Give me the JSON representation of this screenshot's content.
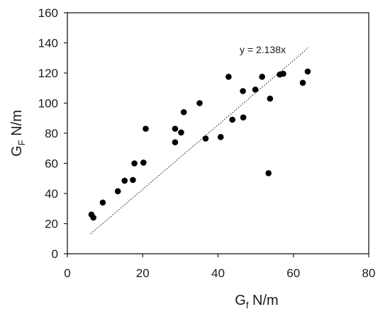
{
  "chart_data": {
    "type": "scatter",
    "title": "",
    "xlabel_main": "G",
    "xlabel_sub": "f",
    "xlabel_unit": " N/m",
    "ylabel_main": "G",
    "ylabel_sub": "F",
    "ylabel_unit": " N/m",
    "xlim": [
      0,
      80
    ],
    "ylim": [
      0,
      160
    ],
    "xticks": [
      0,
      20,
      40,
      60,
      80
    ],
    "yticks": [
      0,
      20,
      40,
      60,
      80,
      100,
      120,
      140,
      160
    ],
    "grid": false,
    "legend": "none",
    "marker_color": "#000000",
    "trendline": {
      "equation": "y = 2.138x",
      "slope": 2.138,
      "x_range": [
        6.2,
        64
      ],
      "style": "dotted"
    },
    "series": [
      {
        "points": [
          [
            6.4,
            26
          ],
          [
            6.9,
            24
          ],
          [
            9.4,
            34
          ],
          [
            13.4,
            41.5
          ],
          [
            15.2,
            48.5
          ],
          [
            17.4,
            49
          ],
          [
            17.8,
            60
          ],
          [
            20.2,
            60.5
          ],
          [
            20.8,
            83
          ],
          [
            28.6,
            83
          ],
          [
            28.6,
            74
          ],
          [
            30.2,
            80.5
          ],
          [
            30.9,
            94
          ],
          [
            35.1,
            100
          ],
          [
            36.7,
            76.5
          ],
          [
            40.7,
            77.5
          ],
          [
            42.8,
            117.5
          ],
          [
            43.8,
            89
          ],
          [
            46.6,
            108
          ],
          [
            46.7,
            90.5
          ],
          [
            49.9,
            109
          ],
          [
            51.7,
            117.5
          ],
          [
            53.4,
            53.5
          ],
          [
            53.8,
            103
          ],
          [
            56.4,
            119
          ],
          [
            57.3,
            119.5
          ],
          [
            62.5,
            113.5
          ],
          [
            63.8,
            121
          ]
        ]
      }
    ]
  }
}
